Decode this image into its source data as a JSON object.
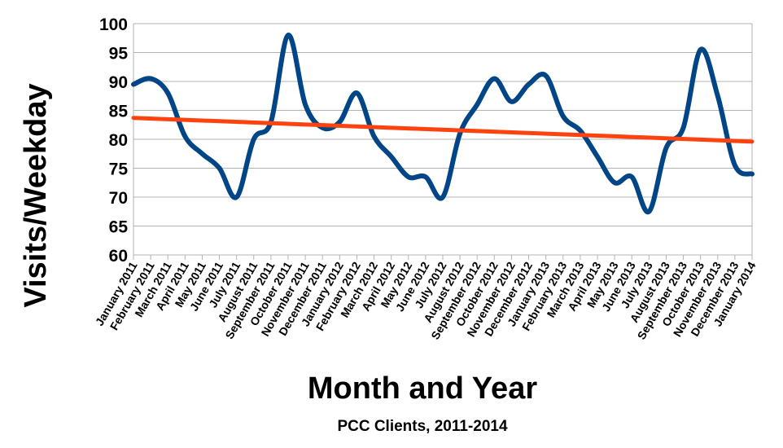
{
  "chart_data": {
    "type": "line",
    "categories": [
      "January 2011",
      "February 2011",
      "March 2011",
      "April 2011",
      "May 2011",
      "June 2011",
      "July 2011",
      "August 2011",
      "September 2011",
      "October 2011",
      "November 2011",
      "December 2011",
      "January 2012",
      "February 2012",
      "March 2012",
      "April 2012",
      "May 2012",
      "June 2012",
      "July 2012",
      "August 2012",
      "September 2012",
      "October 2012",
      "November 2012",
      "December 2012",
      "January 2013",
      "February 2013",
      "March 2013",
      "April 2013",
      "May 2013",
      "June 2013",
      "July 2013",
      "August 2013",
      "September 2013",
      "October 2013",
      "November 2013",
      "December 2013",
      "January 2014"
    ],
    "series": [
      {
        "values": [
          89.5,
          90.5,
          88,
          80.5,
          77.5,
          75,
          70,
          80,
          83,
          98,
          86,
          82,
          83,
          88,
          80.5,
          77,
          73.5,
          73.5,
          70,
          81,
          86,
          90.5,
          86.5,
          89.5,
          91,
          84,
          81.5,
          77,
          72.5,
          73.5,
          67.5,
          78.5,
          82,
          95.5,
          87.5,
          75.5,
          74
        ],
        "color": "#004586"
      }
    ],
    "trendline": {
      "type": "linear",
      "start": 83.7,
      "end": 79.6,
      "color": "#ff420e"
    },
    "ylim": [
      60,
      100
    ],
    "yticks": [
      "60",
      "65",
      "70",
      "75",
      "80",
      "85",
      "90",
      "95",
      "100"
    ],
    "grid": true,
    "legend": "none",
    "ylabel": "Visits/Weekday",
    "xlabel": "Month and Year",
    "caption": "PCC Clients, 2011-2014"
  }
}
